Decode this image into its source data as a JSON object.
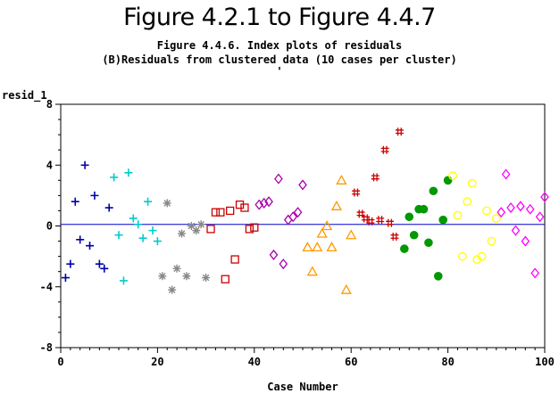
{
  "header": {
    "title": "Figure 4.2.1 to Figure 4.4.7",
    "subtitle1": "Figure 4.4.6. Index plots of residuals",
    "subtitle2": "(B)Residuals from clustered data (10 cases per cluster)",
    "subtitle3": "'"
  },
  "chart_data": {
    "type": "scatter",
    "xlabel": "Case Number",
    "ylabel": "resid_1",
    "xlim": [
      0,
      100
    ],
    "ylim": [
      -8,
      8
    ],
    "xticks": [
      0,
      20,
      40,
      60,
      80,
      100
    ],
    "yticks": [
      -8,
      -4,
      0,
      4,
      8
    ],
    "reference_line": {
      "y": 0.1,
      "color": "#0000cc"
    },
    "grid": false,
    "series": [
      {
        "marker": "plus",
        "color": "#0000aa",
        "x": [
          1,
          2,
          3,
          4,
          5,
          6,
          7,
          8,
          9,
          10
        ],
        "y": [
          -3.4,
          -2.5,
          1.6,
          -0.9,
          4.0,
          -1.3,
          2.0,
          -2.5,
          -2.8,
          1.2
        ]
      },
      {
        "marker": "plus",
        "color": "#00cccc",
        "x": [
          11,
          12,
          13,
          14,
          15,
          16,
          17,
          18,
          19,
          20
        ],
        "y": [
          3.2,
          -0.6,
          -3.6,
          3.5,
          0.5,
          0.1,
          -0.8,
          1.6,
          -0.3,
          -1.0
        ]
      },
      {
        "marker": "asterisk",
        "color": "#888888",
        "x": [
          21,
          22,
          23,
          24,
          25,
          26,
          27,
          28,
          29,
          30
        ],
        "y": [
          -3.3,
          1.5,
          -4.2,
          -2.8,
          -0.5,
          -3.3,
          0.0,
          -0.3,
          0.1,
          -3.4
        ]
      },
      {
        "marker": "square",
        "color": "#cc0000",
        "x": [
          31,
          32,
          33,
          34,
          35,
          36,
          37,
          38,
          39,
          40
        ],
        "y": [
          -0.2,
          0.9,
          0.9,
          -3.5,
          1.0,
          -2.2,
          1.4,
          1.2,
          -0.2,
          -0.1
        ]
      },
      {
        "marker": "diamond",
        "color": "#aa00aa",
        "x": [
          41,
          42,
          43,
          44,
          45,
          46,
          47,
          48,
          49,
          50
        ],
        "y": [
          1.4,
          1.5,
          1.6,
          -1.9,
          3.1,
          -2.5,
          0.4,
          0.6,
          0.9,
          2.7
        ]
      },
      {
        "marker": "triangle",
        "color": "#ff9900",
        "x": [
          51,
          52,
          53,
          54,
          55,
          56,
          57,
          58,
          59,
          60
        ],
        "y": [
          -1.4,
          -3.0,
          -1.4,
          -0.5,
          0.0,
          -1.4,
          1.3,
          3.0,
          -4.2,
          -0.6
        ]
      },
      {
        "marker": "hash",
        "color": "#cc0000",
        "x": [
          61,
          62,
          63,
          64,
          65,
          66,
          67,
          68,
          69,
          70
        ],
        "y": [
          2.2,
          0.8,
          0.5,
          0.3,
          3.2,
          0.4,
          5.0,
          0.2,
          -0.7,
          6.2
        ]
      },
      {
        "marker": "dot",
        "color": "#009900",
        "x": [
          71,
          72,
          73,
          74,
          75,
          76,
          77,
          78,
          79,
          80
        ],
        "y": [
          -1.5,
          0.6,
          -0.6,
          1.1,
          1.1,
          -1.1,
          2.3,
          -3.3,
          0.4,
          3.0
        ]
      },
      {
        "marker": "circle",
        "color": "#ffff00",
        "x": [
          81,
          82,
          83,
          84,
          85,
          86,
          87,
          88,
          89,
          90
        ],
        "y": [
          3.3,
          0.7,
          -2.0,
          1.6,
          2.8,
          -2.2,
          -2.0,
          1.0,
          -1.0,
          0.5
        ]
      },
      {
        "marker": "diamond",
        "color": "#ff00ff",
        "x": [
          91,
          92,
          93,
          94,
          95,
          96,
          97,
          98,
          99,
          100
        ],
        "y": [
          0.9,
          3.4,
          1.2,
          -0.3,
          1.3,
          -1.0,
          1.1,
          -3.1,
          0.6,
          1.9
        ]
      }
    ]
  }
}
